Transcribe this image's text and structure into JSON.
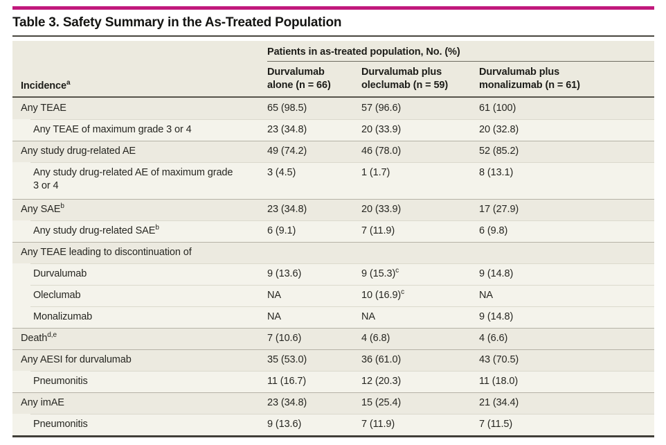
{
  "title": "Table 3. Safety Summary in the As-Treated Population",
  "colors": {
    "accent_bar": "#c1187c",
    "header_background": "#eceadf",
    "shaded_row_background": "#eceae0",
    "light_row_background": "#f4f3eb"
  },
  "table": {
    "spanner": "Patients in as-treated population, No. (%)",
    "incidence_header": {
      "label": "Incidence",
      "sup": "a"
    },
    "columns": [
      {
        "line1": "Durvalumab",
        "line2": "alone (n = 66)"
      },
      {
        "line1": "Durvalumab plus",
        "line2": "oleclumab (n = 59)"
      },
      {
        "line1": "Durvalumab plus",
        "line2": "monalizumab (n = 61)"
      }
    ],
    "rows": [
      {
        "label": "Any TEAE",
        "indent": 0,
        "cells": [
          {
            "text": "65 (98.5)"
          },
          {
            "text": "57 (96.6)"
          },
          {
            "text": "61 (100)"
          }
        ]
      },
      {
        "label": "Any TEAE of maximum grade 3 or 4",
        "indent": 1,
        "cells": [
          {
            "text": "23 (34.8)"
          },
          {
            "text": "20 (33.9)"
          },
          {
            "text": "20 (32.8)"
          }
        ]
      },
      {
        "label": "Any study drug-related AE",
        "indent": 0,
        "cells": [
          {
            "text": "49 (74.2)"
          },
          {
            "text": "46 (78.0)"
          },
          {
            "text": "52 (85.2)"
          }
        ]
      },
      {
        "label": "Any study drug-related AE of maximum grade 3 or 4",
        "indent": 1,
        "cells": [
          {
            "text": "3 (4.5)"
          },
          {
            "text": "1 (1.7)"
          },
          {
            "text": "8 (13.1)"
          }
        ]
      },
      {
        "label": "Any SAE",
        "sup": "b",
        "indent": 0,
        "cells": [
          {
            "text": "23 (34.8)"
          },
          {
            "text": "20 (33.9)"
          },
          {
            "text": "17 (27.9)"
          }
        ]
      },
      {
        "label": "Any study drug-related SAE",
        "sup": "b",
        "indent": 1,
        "cells": [
          {
            "text": "6 (9.1)"
          },
          {
            "text": "7 (11.9)"
          },
          {
            "text": "6 (9.8)"
          }
        ]
      },
      {
        "label": "Any TEAE leading to discontinuation of",
        "indent": 0,
        "cells": [
          {
            "text": ""
          },
          {
            "text": ""
          },
          {
            "text": ""
          }
        ]
      },
      {
        "label": "Durvalumab",
        "indent": 1,
        "cells": [
          {
            "text": "9 (13.6)"
          },
          {
            "text": "9 (15.3)",
            "sup": "c"
          },
          {
            "text": "9 (14.8)"
          }
        ]
      },
      {
        "label": "Oleclumab",
        "indent": 1,
        "cells": [
          {
            "text": "NA"
          },
          {
            "text": "10 (16.9)",
            "sup": "c"
          },
          {
            "text": "NA"
          }
        ]
      },
      {
        "label": "Monalizumab",
        "indent": 1,
        "cells": [
          {
            "text": "NA"
          },
          {
            "text": "NA"
          },
          {
            "text": "9 (14.8)"
          }
        ]
      },
      {
        "label": "Death",
        "sup": "d,e",
        "indent": 0,
        "cells": [
          {
            "text": "7 (10.6)"
          },
          {
            "text": "4 (6.8)"
          },
          {
            "text": "4 (6.6)"
          }
        ]
      },
      {
        "label": "Any AESI for durvalumab",
        "indent": 0,
        "cells": [
          {
            "text": "35 (53.0)"
          },
          {
            "text": "36 (61.0)"
          },
          {
            "text": "43 (70.5)"
          }
        ]
      },
      {
        "label": "Pneumonitis",
        "indent": 1,
        "cells": [
          {
            "text": "11 (16.7)"
          },
          {
            "text": "12 (20.3)"
          },
          {
            "text": "11 (18.0)"
          }
        ]
      },
      {
        "label": "Any imAE",
        "indent": 0,
        "cells": [
          {
            "text": "23 (34.8)"
          },
          {
            "text": "15 (25.4)"
          },
          {
            "text": "21 (34.4)"
          }
        ]
      },
      {
        "label": "Pneumonitis",
        "indent": 1,
        "cells": [
          {
            "text": "9 (13.6)"
          },
          {
            "text": "7 (11.9)"
          },
          {
            "text": "7 (11.5)"
          }
        ]
      }
    ]
  }
}
